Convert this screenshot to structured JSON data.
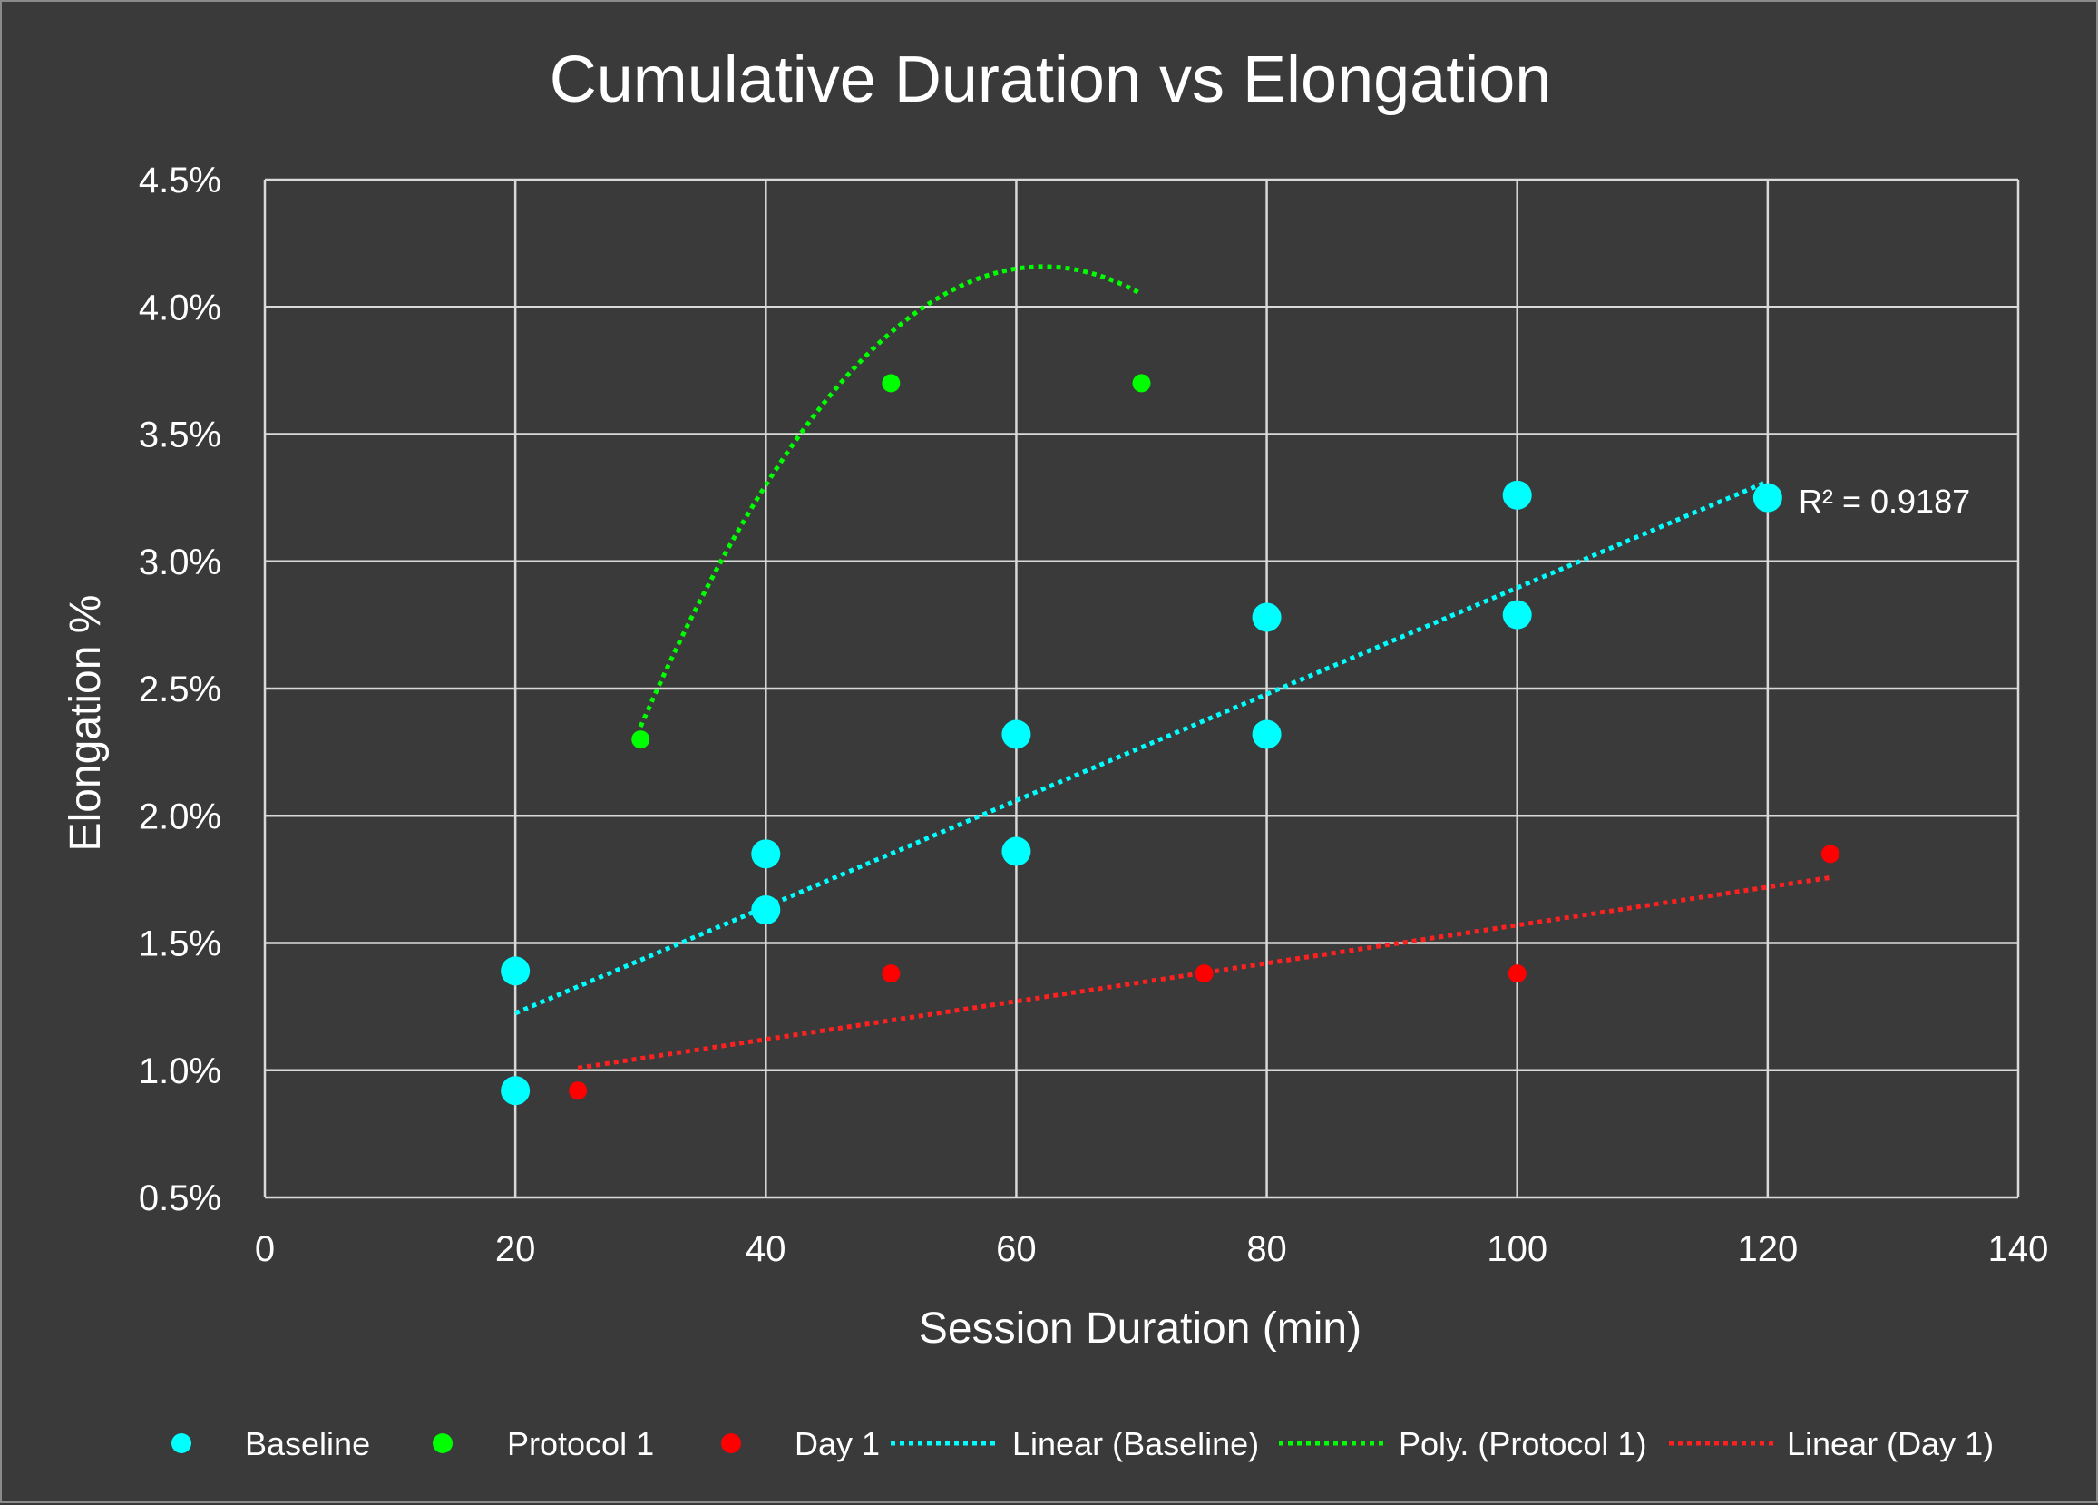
{
  "chart_data": {
    "type": "scatter",
    "title": "Cumulative Duration vs Elongation",
    "xlabel": "Session Duration (min)",
    "ylabel": "Elongation %",
    "xlim": [
      0,
      140
    ],
    "ylim": [
      0.5,
      4.5
    ],
    "x_ticks": [
      0,
      20,
      40,
      60,
      80,
      100,
      120,
      140
    ],
    "x_tick_labels": [
      "0",
      "20",
      "40",
      "60",
      "80",
      "100",
      "120",
      "140"
    ],
    "y_ticks": [
      0.5,
      1.0,
      1.5,
      2.0,
      2.5,
      3.0,
      3.5,
      4.0,
      4.5
    ],
    "y_tick_labels": [
      "0.5%",
      "1.0%",
      "1.5%",
      "2.0%",
      "2.5%",
      "3.0%",
      "3.5%",
      "4.0%",
      "4.5%"
    ],
    "grid": true,
    "legend_position": "bottom",
    "series": [
      {
        "name": "Baseline",
        "color": "#00ffff",
        "marker": "large",
        "points": [
          [
            20,
            1.39
          ],
          [
            20,
            0.92
          ],
          [
            40,
            1.85
          ],
          [
            40,
            1.63
          ],
          [
            60,
            2.32
          ],
          [
            60,
            1.86
          ],
          [
            80,
            2.78
          ],
          [
            80,
            2.32
          ],
          [
            100,
            3.26
          ],
          [
            100,
            2.79
          ],
          [
            120,
            3.25
          ]
        ]
      },
      {
        "name": "Protocol 1",
        "color": "#00ff00",
        "marker": "small",
        "points": [
          [
            30,
            2.3
          ],
          [
            50,
            3.7
          ],
          [
            70,
            3.7
          ]
        ]
      },
      {
        "name": "Day 1",
        "color": "#ff0000",
        "marker": "small",
        "points": [
          [
            25,
            0.92
          ],
          [
            50,
            1.38
          ],
          [
            75,
            1.38
          ],
          [
            100,
            1.38
          ],
          [
            125,
            1.85
          ]
        ]
      }
    ],
    "trendlines": [
      {
        "name": "Linear (Baseline)",
        "type": "linear",
        "color": "#00ffff",
        "x_range": [
          20,
          120
        ],
        "slope": 0.0209,
        "intercept": 0.806,
        "r_squared_label": "R² = 0.9187"
      },
      {
        "name": "Poly. (Protocol 1)",
        "type": "polynomial",
        "color": "#00ff00",
        "x_range": [
          30,
          70
        ],
        "coefficients": [
          -2.6,
          0.2175,
          -0.00175
        ]
      },
      {
        "name": "Linear (Day 1)",
        "type": "linear",
        "color": "#ff2020",
        "x_range": [
          25,
          125
        ],
        "slope": 0.00748,
        "intercept": 0.822
      }
    ]
  }
}
